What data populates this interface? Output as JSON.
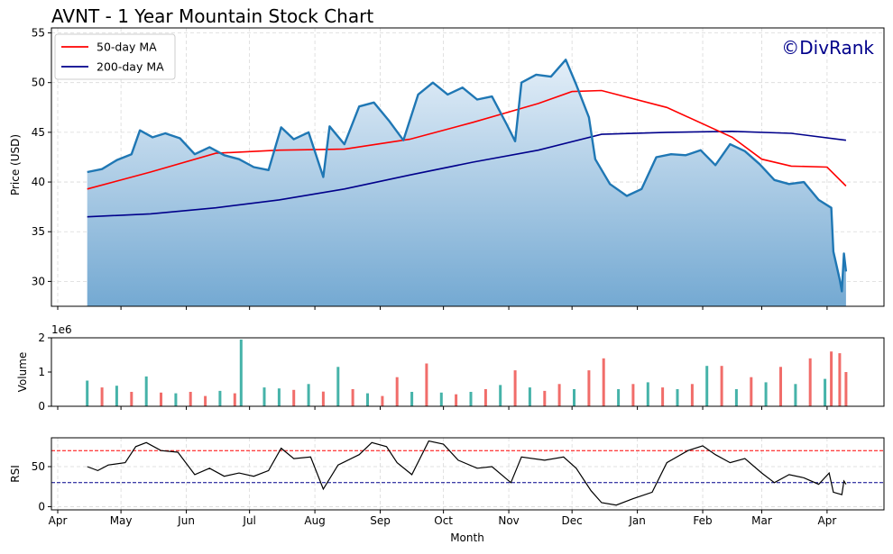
{
  "chart_data": {
    "type": "line",
    "title": "AVNT - 1 Year Mountain Stock Chart",
    "watermark": "©DivRank",
    "colors": {
      "price_line": "#1f77b4",
      "area_top": "#e3eef8",
      "area_bottom": "#74a9d2",
      "ma50": "#ff0000",
      "ma200": "#00008b",
      "vol_up": "#26a69a",
      "vol_down": "#ef5350",
      "rsi_line": "#000000",
      "overbought": "#ff0000",
      "oversold": "#00008b",
      "brand": "#00008b"
    },
    "x": {
      "label": "Month",
      "start": "2024-04-15",
      "end": "2025-04-10",
      "range": [
        "2024-03-29",
        "2025-04-28"
      ],
      "ticks": [
        {
          "label": "Apr",
          "date": "2024-04-01"
        },
        {
          "label": "May",
          "date": "2024-05-01"
        },
        {
          "label": "Jun",
          "date": "2024-06-01"
        },
        {
          "label": "Jul",
          "date": "2024-07-01"
        },
        {
          "label": "Aug",
          "date": "2024-08-01"
        },
        {
          "label": "Sep",
          "date": "2024-09-01"
        },
        {
          "label": "Oct",
          "date": "2024-10-01"
        },
        {
          "label": "Nov",
          "date": "2024-11-01"
        },
        {
          "label": "Dec",
          "date": "2024-12-01"
        },
        {
          "label": "Jan",
          "date": "2025-01-01"
        },
        {
          "label": "Feb",
          "date": "2025-02-01"
        },
        {
          "label": "Mar",
          "date": "2025-03-01"
        },
        {
          "label": "Apr",
          "date": "2025-04-01"
        }
      ]
    },
    "price_panel": {
      "ylabel": "Price (USD)",
      "ylim": [
        27.5,
        55.5
      ],
      "yticks": [
        "30",
        "35",
        "40",
        "45",
        "50",
        "55"
      ],
      "legend": {
        "position": "top-left",
        "items": [
          "50-day MA",
          "200-day MA"
        ]
      },
      "grid": true,
      "price": [
        [
          "2024-04-15",
          41.0
        ],
        [
          "2024-04-22",
          41.3
        ],
        [
          "2024-04-29",
          42.2
        ],
        [
          "2024-05-06",
          42.8
        ],
        [
          "2024-05-10",
          45.2
        ],
        [
          "2024-05-16",
          44.5
        ],
        [
          "2024-05-22",
          44.9
        ],
        [
          "2024-05-29",
          44.4
        ],
        [
          "2024-06-05",
          42.8
        ],
        [
          "2024-06-12",
          43.5
        ],
        [
          "2024-06-19",
          42.7
        ],
        [
          "2024-06-26",
          42.3
        ],
        [
          "2024-07-03",
          41.5
        ],
        [
          "2024-07-10",
          41.2
        ],
        [
          "2024-07-16",
          45.5
        ],
        [
          "2024-07-22",
          44.3
        ],
        [
          "2024-07-29",
          45.0
        ],
        [
          "2024-08-05",
          40.5
        ],
        [
          "2024-08-08",
          45.6
        ],
        [
          "2024-08-15",
          43.8
        ],
        [
          "2024-08-22",
          47.6
        ],
        [
          "2024-08-29",
          48.0
        ],
        [
          "2024-09-05",
          46.2
        ],
        [
          "2024-09-12",
          44.2
        ],
        [
          "2024-09-19",
          48.8
        ],
        [
          "2024-09-26",
          50.0
        ],
        [
          "2024-10-03",
          48.8
        ],
        [
          "2024-10-10",
          49.5
        ],
        [
          "2024-10-17",
          48.3
        ],
        [
          "2024-10-24",
          48.6
        ],
        [
          "2024-10-31",
          45.8
        ],
        [
          "2024-11-04",
          44.1
        ],
        [
          "2024-11-07",
          50.0
        ],
        [
          "2024-11-14",
          50.8
        ],
        [
          "2024-11-21",
          50.6
        ],
        [
          "2024-11-28",
          52.3
        ],
        [
          "2024-12-03",
          49.8
        ],
        [
          "2024-12-09",
          46.5
        ],
        [
          "2024-12-12",
          42.3
        ],
        [
          "2024-12-19",
          39.8
        ],
        [
          "2024-12-27",
          38.6
        ],
        [
          "2025-01-03",
          39.3
        ],
        [
          "2025-01-10",
          42.5
        ],
        [
          "2025-01-17",
          42.8
        ],
        [
          "2025-01-24",
          42.7
        ],
        [
          "2025-01-31",
          43.2
        ],
        [
          "2025-02-07",
          41.7
        ],
        [
          "2025-02-14",
          43.8
        ],
        [
          "2025-02-21",
          43.1
        ],
        [
          "2025-02-28",
          41.8
        ],
        [
          "2025-03-07",
          40.2
        ],
        [
          "2025-03-14",
          39.8
        ],
        [
          "2025-03-21",
          40.0
        ],
        [
          "2025-03-28",
          38.2
        ],
        [
          "2025-04-03",
          37.4
        ],
        [
          "2025-04-04",
          33.0
        ],
        [
          "2025-04-07",
          30.2
        ],
        [
          "2025-04-08",
          29.0
        ],
        [
          "2025-04-09",
          32.8
        ],
        [
          "2025-04-10",
          31.0
        ]
      ],
      "ma50": [
        [
          "2024-04-15",
          39.3
        ],
        [
          "2024-05-15",
          41.0
        ],
        [
          "2024-06-15",
          42.9
        ],
        [
          "2024-07-15",
          43.2
        ],
        [
          "2024-08-15",
          43.3
        ],
        [
          "2024-09-15",
          44.3
        ],
        [
          "2024-10-15",
          46.0
        ],
        [
          "2024-11-15",
          47.9
        ],
        [
          "2024-12-01",
          49.1
        ],
        [
          "2024-12-15",
          49.2
        ],
        [
          "2025-01-15",
          47.5
        ],
        [
          "2025-02-15",
          44.5
        ],
        [
          "2025-03-01",
          42.3
        ],
        [
          "2025-03-15",
          41.6
        ],
        [
          "2025-04-01",
          41.5
        ],
        [
          "2025-04-10",
          39.6
        ]
      ],
      "ma200": [
        [
          "2024-04-15",
          36.5
        ],
        [
          "2024-05-15",
          36.8
        ],
        [
          "2024-06-15",
          37.4
        ],
        [
          "2024-07-15",
          38.2
        ],
        [
          "2024-08-15",
          39.3
        ],
        [
          "2024-09-15",
          40.7
        ],
        [
          "2024-10-15",
          42.0
        ],
        [
          "2024-11-15",
          43.2
        ],
        [
          "2024-12-15",
          44.8
        ],
        [
          "2025-01-15",
          45.0
        ],
        [
          "2025-02-15",
          45.1
        ],
        [
          "2025-03-15",
          44.9
        ],
        [
          "2025-04-10",
          44.2
        ]
      ]
    },
    "volume_panel": {
      "ylabel": "Volume",
      "scale_label": "1e6",
      "ylim": [
        0,
        2000000
      ],
      "yticks": [
        "0",
        "1",
        "2"
      ],
      "volume": [
        [
          "2024-04-15",
          750000,
          "up"
        ],
        [
          "2024-04-22",
          550000,
          "down"
        ],
        [
          "2024-04-29",
          600000,
          "up"
        ],
        [
          "2024-05-06",
          420000,
          "down"
        ],
        [
          "2024-05-13",
          870000,
          "up"
        ],
        [
          "2024-05-20",
          400000,
          "down"
        ],
        [
          "2024-05-27",
          380000,
          "up"
        ],
        [
          "2024-06-03",
          420000,
          "down"
        ],
        [
          "2024-06-10",
          300000,
          "down"
        ],
        [
          "2024-06-17",
          450000,
          "up"
        ],
        [
          "2024-06-24",
          380000,
          "down"
        ],
        [
          "2024-06-27",
          1950000,
          "up"
        ],
        [
          "2024-07-08",
          550000,
          "up"
        ],
        [
          "2024-07-15",
          520000,
          "up"
        ],
        [
          "2024-07-22",
          480000,
          "down"
        ],
        [
          "2024-07-29",
          650000,
          "up"
        ],
        [
          "2024-08-05",
          430000,
          "down"
        ],
        [
          "2024-08-12",
          1150000,
          "up"
        ],
        [
          "2024-08-19",
          500000,
          "down"
        ],
        [
          "2024-08-26",
          380000,
          "up"
        ],
        [
          "2024-09-02",
          300000,
          "down"
        ],
        [
          "2024-09-09",
          850000,
          "down"
        ],
        [
          "2024-09-16",
          420000,
          "up"
        ],
        [
          "2024-09-23",
          1250000,
          "down"
        ],
        [
          "2024-09-30",
          400000,
          "up"
        ],
        [
          "2024-10-07",
          350000,
          "down"
        ],
        [
          "2024-10-14",
          420000,
          "up"
        ],
        [
          "2024-10-21",
          500000,
          "down"
        ],
        [
          "2024-10-28",
          620000,
          "up"
        ],
        [
          "2024-11-04",
          1050000,
          "down"
        ],
        [
          "2024-11-11",
          550000,
          "up"
        ],
        [
          "2024-11-18",
          450000,
          "down"
        ],
        [
          "2024-11-25",
          650000,
          "down"
        ],
        [
          "2024-12-02",
          500000,
          "up"
        ],
        [
          "2024-12-09",
          1050000,
          "down"
        ],
        [
          "2024-12-16",
          1400000,
          "down"
        ],
        [
          "2024-12-23",
          500000,
          "up"
        ],
        [
          "2024-12-30",
          650000,
          "down"
        ],
        [
          "2025-01-06",
          700000,
          "up"
        ],
        [
          "2025-01-13",
          550000,
          "down"
        ],
        [
          "2025-01-20",
          500000,
          "up"
        ],
        [
          "2025-01-27",
          650000,
          "down"
        ],
        [
          "2025-02-03",
          1180000,
          "up"
        ],
        [
          "2025-02-10",
          1180000,
          "down"
        ],
        [
          "2025-02-17",
          500000,
          "up"
        ],
        [
          "2025-02-24",
          850000,
          "down"
        ],
        [
          "2025-03-03",
          700000,
          "up"
        ],
        [
          "2025-03-10",
          1150000,
          "down"
        ],
        [
          "2025-03-17",
          650000,
          "up"
        ],
        [
          "2025-03-24",
          1400000,
          "down"
        ],
        [
          "2025-03-31",
          800000,
          "up"
        ],
        [
          "2025-04-03",
          1600000,
          "down"
        ],
        [
          "2025-04-07",
          1550000,
          "down"
        ],
        [
          "2025-04-10",
          1000000,
          "down"
        ]
      ]
    },
    "rsi_panel": {
      "ylabel": "RSI",
      "ylim": [
        -4,
        86
      ],
      "yticks": [
        "0",
        "50"
      ],
      "overbought": 70,
      "oversold": 30,
      "rsi": [
        [
          "2024-04-15",
          50
        ],
        [
          "2024-04-20",
          45
        ],
        [
          "2024-04-25",
          52
        ],
        [
          "2024-05-03",
          55
        ],
        [
          "2024-05-08",
          75
        ],
        [
          "2024-05-13",
          80
        ],
        [
          "2024-05-20",
          70
        ],
        [
          "2024-05-28",
          68
        ],
        [
          "2024-06-05",
          40
        ],
        [
          "2024-06-12",
          48
        ],
        [
          "2024-06-19",
          38
        ],
        [
          "2024-06-26",
          42
        ],
        [
          "2024-07-03",
          38
        ],
        [
          "2024-07-10",
          45
        ],
        [
          "2024-07-16",
          73
        ],
        [
          "2024-07-22",
          60
        ],
        [
          "2024-07-30",
          62
        ],
        [
          "2024-08-05",
          22
        ],
        [
          "2024-08-12",
          52
        ],
        [
          "2024-08-22",
          65
        ],
        [
          "2024-08-28",
          80
        ],
        [
          "2024-09-04",
          75
        ],
        [
          "2024-09-09",
          55
        ],
        [
          "2024-09-16",
          40
        ],
        [
          "2024-09-24",
          82
        ],
        [
          "2024-10-01",
          78
        ],
        [
          "2024-10-08",
          58
        ],
        [
          "2024-10-17",
          48
        ],
        [
          "2024-10-24",
          50
        ],
        [
          "2024-11-02",
          30
        ],
        [
          "2024-11-07",
          62
        ],
        [
          "2024-11-18",
          58
        ],
        [
          "2024-11-27",
          62
        ],
        [
          "2024-12-03",
          48
        ],
        [
          "2024-12-10",
          20
        ],
        [
          "2024-12-15",
          5
        ],
        [
          "2024-12-22",
          2
        ],
        [
          "2024-12-30",
          10
        ],
        [
          "2025-01-08",
          18
        ],
        [
          "2025-01-15",
          55
        ],
        [
          "2025-01-25",
          70
        ],
        [
          "2025-02-01",
          76
        ],
        [
          "2025-02-07",
          65
        ],
        [
          "2025-02-14",
          55
        ],
        [
          "2025-02-21",
          60
        ],
        [
          "2025-03-01",
          42
        ],
        [
          "2025-03-07",
          30
        ],
        [
          "2025-03-14",
          40
        ],
        [
          "2025-03-21",
          36
        ],
        [
          "2025-03-28",
          28
        ],
        [
          "2025-04-02",
          42
        ],
        [
          "2025-04-04",
          18
        ],
        [
          "2025-04-08",
          15
        ],
        [
          "2025-04-09",
          32
        ],
        [
          "2025-04-10",
          28
        ]
      ]
    }
  }
}
